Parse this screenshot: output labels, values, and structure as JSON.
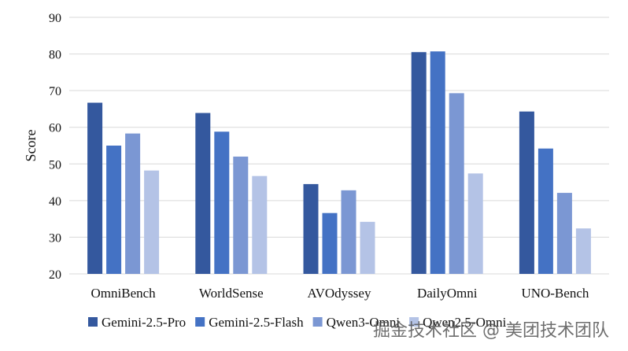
{
  "chart_data": {
    "type": "bar",
    "title": "",
    "xlabel": "",
    "ylabel": "Score",
    "ylim": [
      20,
      90
    ],
    "yticks": [
      20,
      30,
      40,
      50,
      60,
      70,
      80,
      90
    ],
    "grid": true,
    "legend_position": "bottom",
    "categories": [
      "OmniBench",
      "WorldSense",
      "AVOdyssey",
      "DailyOmni",
      "UNO-Bench"
    ],
    "series": [
      {
        "name": "Gemini-2.5-Pro",
        "color": "#34589e",
        "values": [
          66.7,
          63.9,
          44.5,
          80.5,
          64.3
        ]
      },
      {
        "name": "Gemini-2.5-Flash",
        "color": "#4472c4",
        "values": [
          55.0,
          58.8,
          36.6,
          80.7,
          54.2
        ]
      },
      {
        "name": "Qwen3-Omni",
        "color": "#7b97d3",
        "values": [
          58.3,
          52.0,
          42.8,
          69.3,
          42.1
        ]
      },
      {
        "name": "Qwen2.5-Omni",
        "color": "#b4c3e6",
        "values": [
          48.2,
          46.7,
          34.2,
          47.4,
          32.4
        ]
      }
    ]
  },
  "watermark": "掘金技术社区 @ 美团技术团队"
}
